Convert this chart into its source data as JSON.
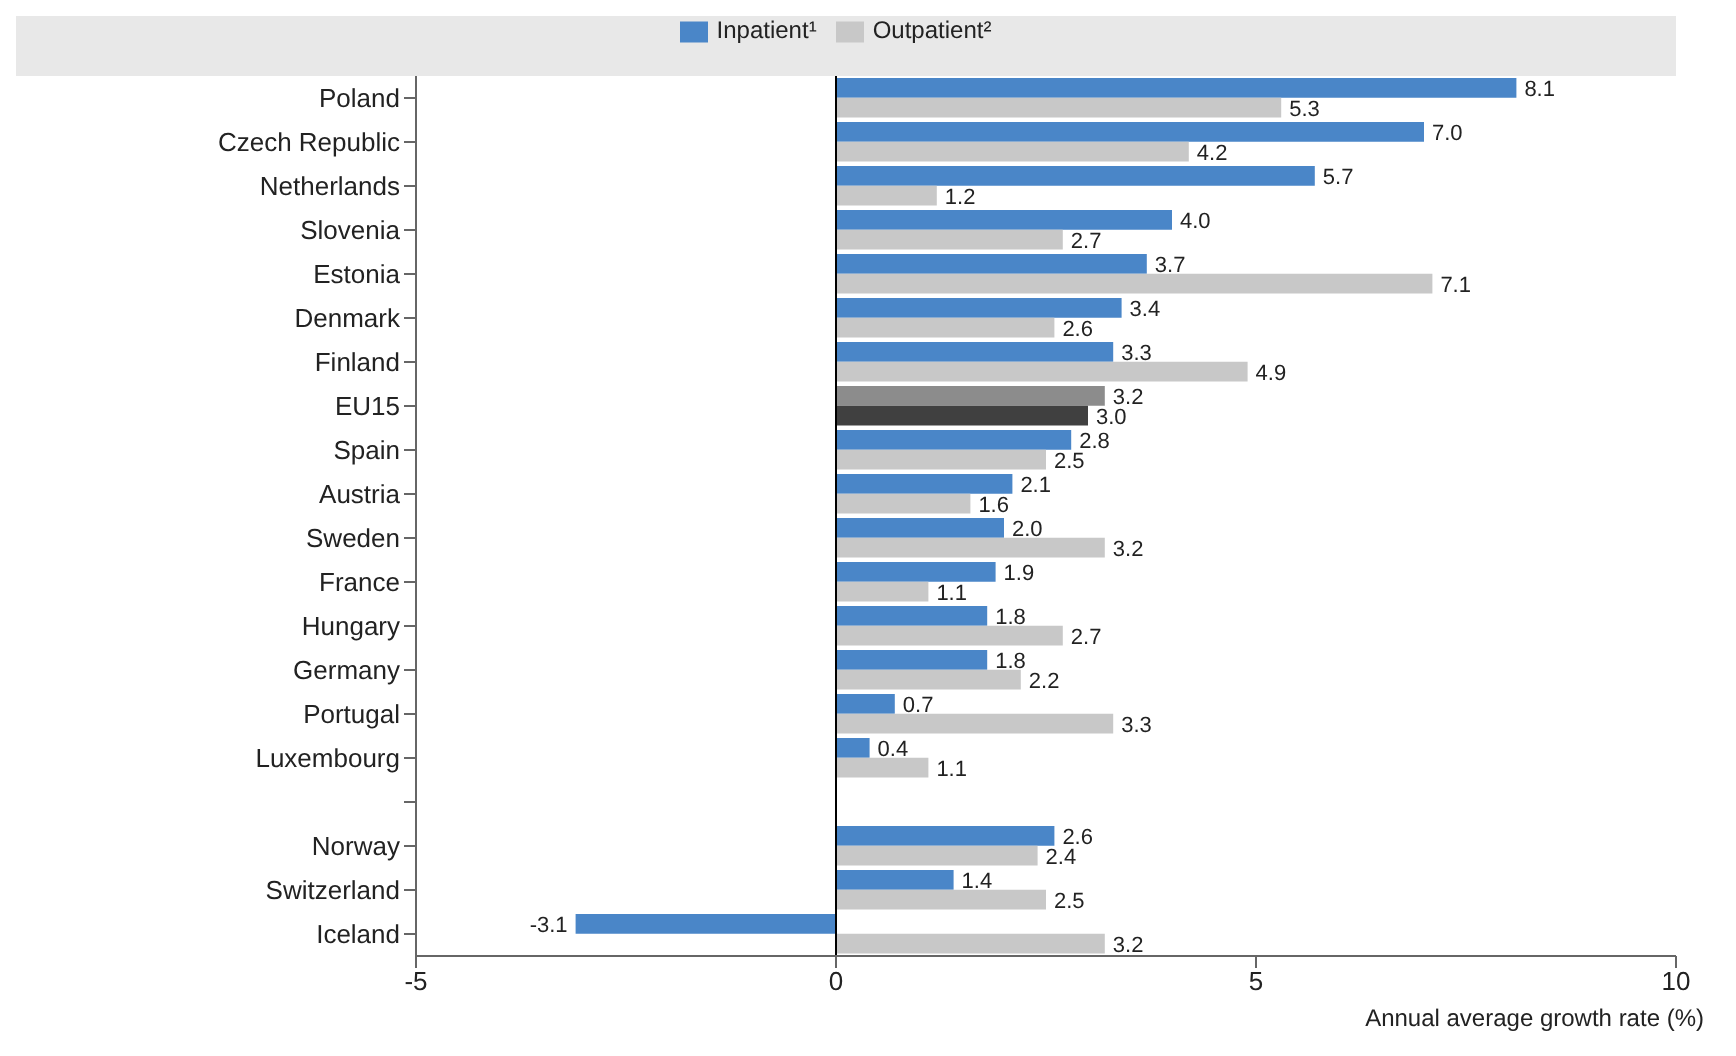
{
  "chart_data": {
    "type": "bar",
    "orientation": "horizontal",
    "xlabel": "Annual average growth rate (%)",
    "categories": [
      "Poland",
      "Czech Republic",
      "Netherlands",
      "Slovenia",
      "Estonia",
      "Denmark",
      "Finland",
      "EU15",
      "Spain",
      "Austria",
      "Sweden",
      "France",
      "Hungary",
      "Germany",
      "Portugal",
      "Luxembourg",
      null,
      "Norway",
      "Switzerland",
      "Iceland"
    ],
    "series": [
      {
        "name": "Inpatient¹",
        "color": "#4a86c8",
        "colors": [
          "#4a86c8",
          "#4a86c8",
          "#4a86c8",
          "#4a86c8",
          "#4a86c8",
          "#4a86c8",
          "#4a86c8",
          "#8c8c8c",
          "#4a86c8",
          "#4a86c8",
          "#4a86c8",
          "#4a86c8",
          "#4a86c8",
          "#4a86c8",
          "#4a86c8",
          "#4a86c8",
          "#4a86c8",
          "#4a86c8",
          "#4a86c8",
          "#4a86c8"
        ],
        "value_labels": [
          "8.1",
          "7.0",
          "5.7",
          "4.0",
          "3.7",
          "3.4",
          "3.3",
          "3.2",
          "2.8",
          "2.1",
          "2.0",
          "1.9",
          "1.8",
          "1.8",
          "0.7",
          "0.4",
          null,
          "2.6",
          "1.4",
          "-3.1"
        ],
        "values": [
          8.1,
          7.0,
          5.7,
          4.0,
          3.7,
          3.4,
          3.3,
          3.2,
          2.8,
          2.1,
          2.0,
          1.9,
          1.8,
          1.8,
          0.7,
          0.4,
          null,
          2.6,
          1.4,
          -3.1
        ]
      },
      {
        "name": "Outpatient²",
        "color": "#c8c8c8",
        "colors": [
          "#c8c8c8",
          "#c8c8c8",
          "#c8c8c8",
          "#c8c8c8",
          "#c8c8c8",
          "#c8c8c8",
          "#c8c8c8",
          "#404040",
          "#c8c8c8",
          "#c8c8c8",
          "#c8c8c8",
          "#c8c8c8",
          "#c8c8c8",
          "#c8c8c8",
          "#c8c8c8",
          "#c8c8c8",
          "#c8c8c8",
          "#c8c8c8",
          "#c8c8c8",
          "#c8c8c8"
        ],
        "value_labels": [
          "5.3",
          "4.2",
          "1.2",
          "2.7",
          "7.1",
          "2.6",
          "4.9",
          "3.0",
          "2.5",
          "1.6",
          "3.2",
          "1.1",
          "2.7",
          "2.2",
          "3.3",
          "1.1",
          null,
          "2.4",
          "2.5",
          "3.2"
        ],
        "values": [
          5.3,
          4.2,
          1.2,
          2.7,
          7.1,
          2.6,
          4.9,
          3.0,
          2.5,
          1.6,
          3.2,
          1.1,
          2.7,
          2.2,
          3.3,
          1.1,
          null,
          2.4,
          2.5,
          3.2
        ]
      }
    ],
    "xlim": [
      -5,
      10
    ],
    "xticks": [
      -5,
      0,
      5,
      10
    ],
    "grid": false,
    "ref_lines": [
      {
        "axis": "x",
        "value": 0,
        "color": "#000000"
      }
    ],
    "legend": "top"
  }
}
